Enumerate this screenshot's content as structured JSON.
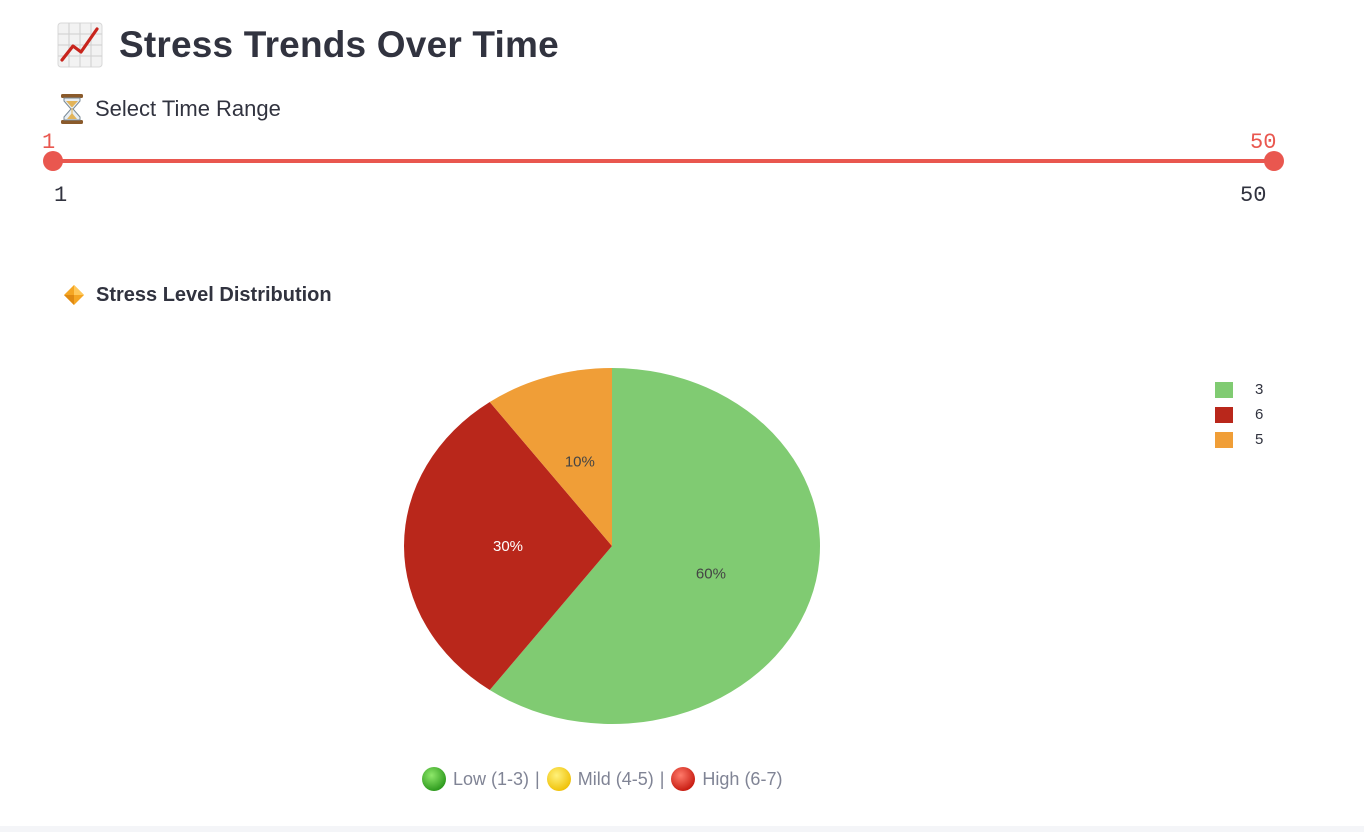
{
  "header": {
    "title": "Stress Trends Over Time",
    "title_icon": "chart-increasing-icon"
  },
  "time_range": {
    "label": "Select Time Range",
    "label_icon": "hourglass-icon",
    "min": "1",
    "max": "50",
    "selected_start": "1",
    "selected_end": "50",
    "accent_color": "#e9574f"
  },
  "distribution": {
    "section_title": "Stress Level Distribution",
    "section_icon": "orange-diamond-icon"
  },
  "chart_data": {
    "type": "pie",
    "categories": [
      "3",
      "6",
      "5"
    ],
    "values": [
      60,
      30,
      10
    ],
    "labels": [
      "60%",
      "30%",
      "10%"
    ],
    "colors": [
      "#80cb72",
      "#b9271b",
      "#f09e37"
    ],
    "legend_position": "top-right"
  },
  "caption": {
    "low_label": "Low (1-3)",
    "mild_label": "Mild (4-5)",
    "high_label": "High (6-7)",
    "separator": "|",
    "low_icon": "green-circle-icon",
    "mild_icon": "yellow-circle-icon",
    "high_icon": "red-circle-icon"
  }
}
